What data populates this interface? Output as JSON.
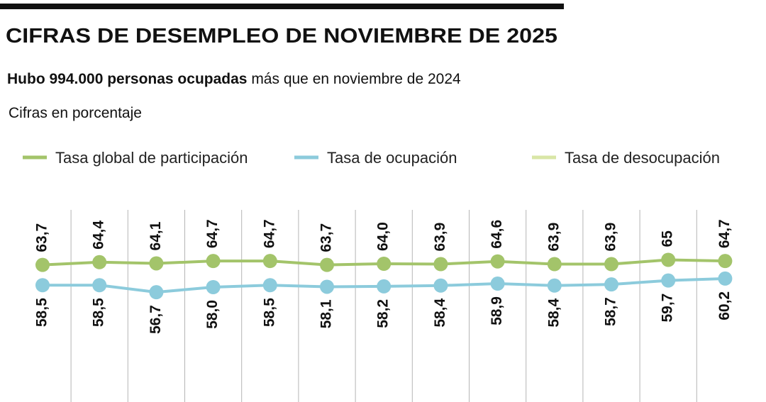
{
  "chart_data": {
    "type": "line",
    "title": "CIFRAS DE DESEMPLEO DE NOVIEMBRE DE 2025",
    "subtitle_bold": "Hubo 994.000 personas ocupadas",
    "subtitle_rest": "más que en noviembre de 2024",
    "note": "Cifras en porcentaje",
    "categories": [
      null,
      null,
      null,
      null,
      null,
      null,
      null,
      null,
      null,
      null,
      null,
      null,
      null
    ],
    "ylim": [
      40,
      80
    ],
    "series": [
      {
        "name": "Tasa global de participación",
        "color": "#a3c46a",
        "values": [
          63.7,
          64.4,
          64.1,
          64.7,
          64.7,
          63.7,
          64.0,
          63.9,
          64.6,
          63.9,
          63.9,
          65,
          64.7
        ],
        "value_labels": [
          "63,7",
          "64,4",
          "64,1",
          "64,7",
          "64,7",
          "63,7",
          "64,0",
          "63,9",
          "64,6",
          "63,9",
          "63,9",
          "65",
          "64,7"
        ]
      },
      {
        "name": "Tasa de ocupación",
        "color": "#8ccbdc",
        "values": [
          58.5,
          58.5,
          56.7,
          58.0,
          58.5,
          58.1,
          58.2,
          58.4,
          58.9,
          58.4,
          58.7,
          59.7,
          60.2
        ],
        "value_labels": [
          "58,5",
          "58,5",
          "56,7",
          "58,0",
          "58,5",
          "58,1",
          "58,2",
          "58,4",
          "58,9",
          "58,4",
          "58,7",
          "59,7",
          "60,2"
        ]
      },
      {
        "name": "Tasa de desocupación",
        "color": "#d9e6a6",
        "values": [
          null,
          null,
          null,
          null,
          null,
          null,
          null,
          null,
          null,
          null,
          null,
          null,
          null
        ]
      }
    ]
  }
}
